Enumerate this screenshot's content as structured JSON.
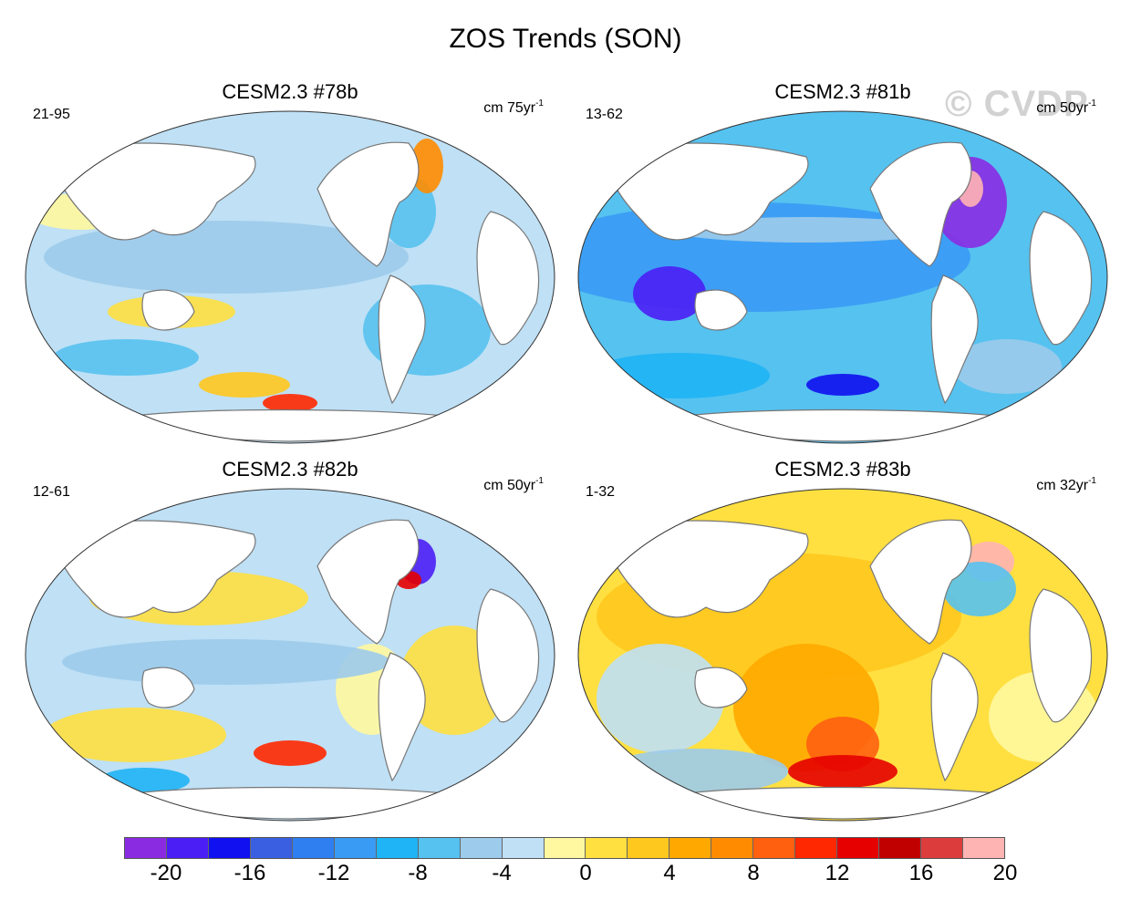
{
  "figure": {
    "title": "ZOS Trends (SON)",
    "watermark": "© CVDP"
  },
  "panels": [
    {
      "title": "CESM2.3 #78b",
      "range": "21-95",
      "units": "cm 75yr",
      "units_sup": "-1",
      "tone": "cool-weak"
    },
    {
      "title": "CESM2.3 #81b",
      "range": "13-62",
      "units": "cm 50yr",
      "units_sup": "-1",
      "tone": "cool-strong"
    },
    {
      "title": "CESM2.3 #82b",
      "range": "12-61",
      "units": "cm 50yr",
      "units_sup": "-1",
      "tone": "mixed"
    },
    {
      "title": "CESM2.3 #83b",
      "range": "1-32",
      "units": "cm 32yr",
      "units_sup": "-1",
      "tone": "warm"
    }
  ],
  "colorbar": {
    "colors": [
      "#8a2be2",
      "#4b1ef5",
      "#1010f0",
      "#3a5fe0",
      "#2f7ff0",
      "#3a9bf5",
      "#1fb4f5",
      "#56c2f0",
      "#9ccbeb",
      "#bfe0f5",
      "#fff8a0",
      "#ffe040",
      "#ffc81e",
      "#ffa800",
      "#ff8c00",
      "#ff6010",
      "#ff2800",
      "#e60000",
      "#c00000",
      "#dc3c3c",
      "#ffb4b4"
    ],
    "tick_labels": [
      "-20",
      "-16",
      "-12",
      "-8",
      "-4",
      "0",
      "4",
      "8",
      "12",
      "16",
      "20"
    ]
  }
}
